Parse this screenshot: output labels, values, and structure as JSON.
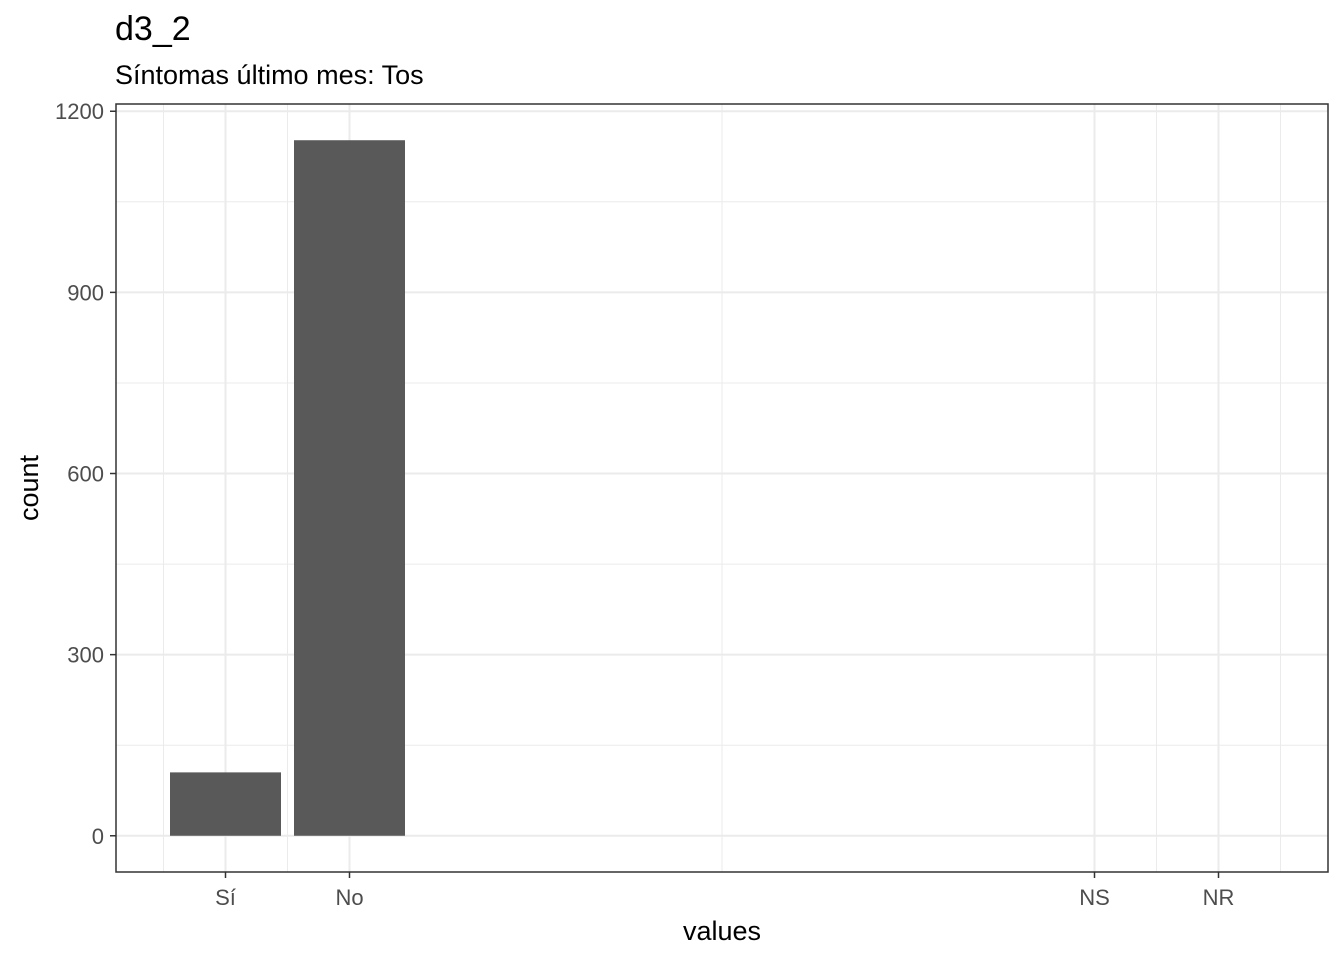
{
  "chart_data": {
    "type": "bar",
    "title": "d3_2",
    "subtitle": "Síntomas último mes: Tos",
    "xlabel": "values",
    "ylabel": "count",
    "categories": [
      "Sí",
      "No",
      "NS",
      "NR"
    ],
    "values": [
      105,
      1152,
      0,
      0
    ],
    "ylim": [
      -60,
      1212
    ],
    "yticks": [
      0,
      300,
      600,
      900,
      1200
    ],
    "grid": true,
    "colors": {
      "bar": "#595959",
      "grid": "#ebebeb",
      "axis_text": "#4d4d4d",
      "panel_border": "#333333"
    }
  }
}
